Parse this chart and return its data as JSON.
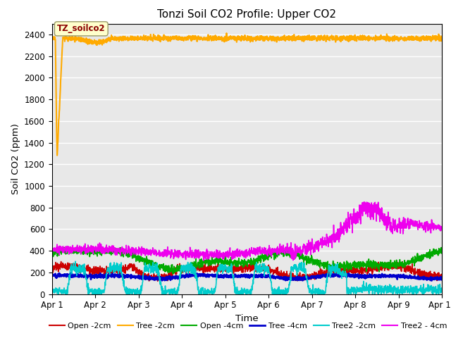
{
  "title": "Tonzi Soil CO2 Profile: Upper CO2",
  "xlabel": "Time",
  "ylabel": "Soil CO2 (ppm)",
  "ylim": [
    0,
    2500
  ],
  "yticks": [
    0,
    200,
    400,
    600,
    800,
    1000,
    1200,
    1400,
    1600,
    1800,
    2000,
    2200,
    2400
  ],
  "xtick_labels": [
    "Apr 1",
    "Apr 2",
    "Apr 3",
    "Apr 4",
    "Apr 5",
    "Apr 6",
    "Apr 7",
    "Apr 8",
    "Apr 9",
    "Apr 10"
  ],
  "bg_color": "#e8e8e8",
  "annotation_text": "TZ_soilco2",
  "series": {
    "Open_2cm": {
      "color": "#cc0000",
      "lw": 1.2,
      "label": "Open -2cm"
    },
    "Tree_2cm": {
      "color": "#ffaa00",
      "lw": 1.5,
      "label": "Tree -2cm"
    },
    "Open_4cm": {
      "color": "#00aa00",
      "lw": 1.2,
      "label": "Open -4cm"
    },
    "Tree_4cm": {
      "color": "#0000cc",
      "lw": 1.8,
      "label": "Tree -4cm"
    },
    "Tree2_2cm": {
      "color": "#00cccc",
      "lw": 1.2,
      "label": "Tree2 -2cm"
    },
    "Tree2_4cm": {
      "color": "#ee00ee",
      "lw": 1.2,
      "label": "Tree2 - 4cm"
    }
  }
}
